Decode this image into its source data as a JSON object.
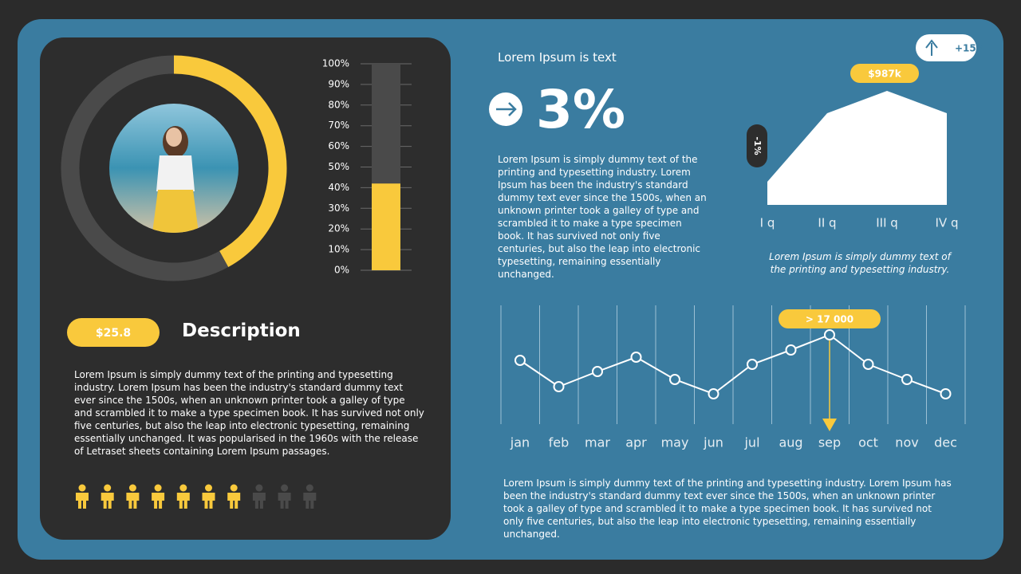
{
  "chart_data": [
    {
      "type": "donut",
      "values": [
        42,
        58
      ],
      "colors": [
        "#f9c93c",
        "#4a4a4a"
      ]
    },
    {
      "type": "bar",
      "values": [
        42
      ],
      "color": "#f9c93c",
      "ylim": [
        0,
        100
      ],
      "yticks": [
        {
          "value": 0,
          "label": "0%"
        },
        {
          "value": 10,
          "label": "10%"
        },
        {
          "value": 20,
          "label": "20%"
        },
        {
          "value": 30,
          "label": "30%"
        },
        {
          "value": 40,
          "label": "40%"
        },
        {
          "value": 50,
          "label": "50%"
        },
        {
          "value": 60,
          "label": "60%"
        },
        {
          "value": 70,
          "label": "70%"
        },
        {
          "value": 80,
          "label": "80%"
        },
        {
          "value": 90,
          "label": "90%"
        },
        {
          "value": 100,
          "label": "100%"
        }
      ],
      "grid": true
    },
    {
      "type": "area",
      "categories": [
        "I q",
        "II q",
        "III q",
        "IV q"
      ],
      "values": [
        200000,
        794000,
        987000,
        794000
      ],
      "value_labels": [
        null,
        null,
        "$987k",
        null
      ],
      "color": "#ffffff",
      "annotations": [
        "-1%",
        "+15%"
      ],
      "caption": "Lorem Ipsum  is simply dummy  text of the printing  and typesetting  industry."
    },
    {
      "type": "line",
      "categories": [
        "jan",
        "feb",
        "mar",
        "apr",
        "may",
        "jun",
        "jul",
        "aug",
        "sep",
        "oct",
        "nov",
        "dec"
      ],
      "values": [
        15400,
        13750,
        14700,
        15600,
        14200,
        13300,
        15150,
        16050,
        17000,
        15150,
        14200,
        13300
      ],
      "value_labels": [
        null,
        null,
        null,
        null,
        null,
        null,
        null,
        null,
        "> 17 000",
        null,
        null,
        null
      ],
      "color": "#ffffff",
      "grid": true
    },
    {
      "type": "pictogram",
      "values": [
        7,
        3
      ],
      "colors": [
        "#f9c93c",
        "#4a4a4a"
      ]
    }
  ],
  "left": {
    "price": "$25.8",
    "heading": "Description",
    "text": "Lorem Ipsum is simply dummy text of the printing and typesetting industry. Lorem Ipsum has been the industry's standard dummy text ever since the 1500s, when an unknown printer took a galley of type and scrambled it to make a type specimen book. It has survived not only five centuries, but also the leap into electronic typesetting, remaining essentially unchanged. It was popularised in the 1960s with the release of Letraset sheets containing Lorem Ipsum passages."
  },
  "middle": {
    "label": "Lorem Ipsum is text",
    "big": "3%",
    "text": "Lorem Ipsum is simply dummy text of the printing and typesetting industry. Lorem Ipsum has been the industry's standard dummy text ever since the 1500s, when an unknown printer took a galley of type and scrambled it to make a type specimen book. It has survived not only five centuries, but also the leap into electronic typesetting, remaining essentially unchanged."
  },
  "bottom": {
    "text": "Lorem Ipsum is simply dummy text of the printing and typesetting industry. Lorem Ipsum has been the industry's standard dummy text ever since the 1500s, when an unknown printer took a galley of type and scrambled it to make a type specimen book. It has survived not only five centuries, but also the leap into electronic typesetting, remaining essentially unchanged."
  }
}
